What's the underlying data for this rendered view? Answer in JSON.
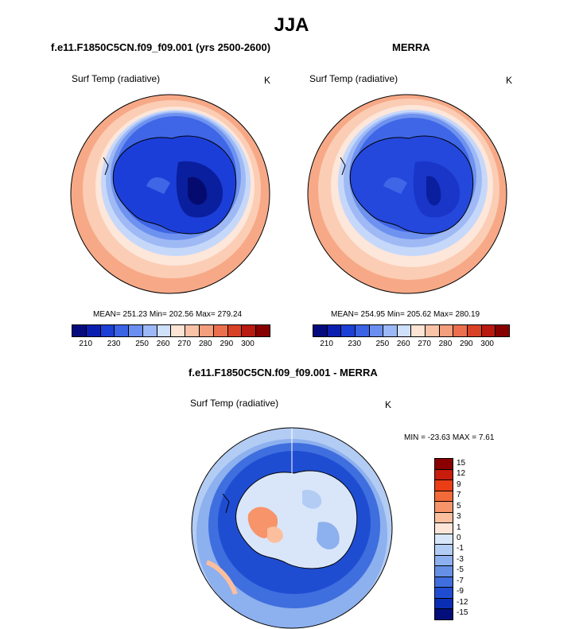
{
  "page": {
    "title": "JJA",
    "units": "K",
    "variable": "Surf Temp (radiative)"
  },
  "panels": {
    "model": {
      "title": "f.e11.F1850C5CN.f09_f09.001 (yrs 2500-2600)",
      "stats": "MEAN= 251.23  Min= 202.56  Max= 279.24"
    },
    "obs": {
      "title": "MERRA",
      "stats": "MEAN= 254.95  Min= 205.62  Max= 280.19"
    },
    "diff": {
      "title": "f.e11.F1850C5CN.f09_f09.001 - MERRA",
      "stats": "MIN = -23.63 MAX =   7.61"
    }
  },
  "colors": {
    "abs_scale": [
      "#050b7d",
      "#0a1fb0",
      "#1c3fd6",
      "#3b63e6",
      "#6a8ff0",
      "#9db8f6",
      "#cfe0fb",
      "#fde4d4",
      "#f9c3a7",
      "#f39e7c",
      "#eb6f4f",
      "#d94126",
      "#b81a10",
      "#870000"
    ],
    "diff_scale": [
      "#8a0000",
      "#c81c0c",
      "#ea3e16",
      "#f36a3a",
      "#f7946a",
      "#fbbf9e",
      "#fde6d8",
      "#d9e6fa",
      "#b3ccf4",
      "#8db0ee",
      "#6690e6",
      "#3f6ede",
      "#1f4dd2",
      "#0a2eb3",
      "#040e7a"
    ],
    "antarctica_model": "#1b3ad2",
    "antarctica_interior": "#0a1f9e",
    "antarctica_deep": "#050b6e"
  },
  "chart_data": [
    {
      "type": "heatmap",
      "projection": "polar-stereographic-south",
      "title": "f.e11.F1850C5CN.f09_f09.001 (yrs 2500-2600)",
      "variable": "Surf Temp (radiative)",
      "units": "K",
      "mean": 251.23,
      "min": 202.56,
      "max": 279.24,
      "colorbar_ticks": [
        "210",
        "230",
        "250",
        "260",
        "270",
        "280",
        "290",
        "300"
      ],
      "colorbar_levels": [
        205,
        210,
        220,
        230,
        240,
        250,
        255,
        260,
        265,
        270,
        275,
        280,
        290,
        295,
        300
      ]
    },
    {
      "type": "heatmap",
      "projection": "polar-stereographic-south",
      "title": "MERRA",
      "variable": "Surf Temp (radiative)",
      "units": "K",
      "mean": 254.95,
      "min": 205.62,
      "max": 280.19,
      "colorbar_ticks": [
        "210",
        "230",
        "250",
        "260",
        "270",
        "280",
        "290",
        "300"
      ],
      "colorbar_levels": [
        205,
        210,
        220,
        230,
        240,
        250,
        255,
        260,
        265,
        270,
        275,
        280,
        290,
        295,
        300
      ]
    },
    {
      "type": "heatmap",
      "projection": "polar-stereographic-south",
      "title": "f.e11.F1850C5CN.f09_f09.001 - MERRA",
      "variable": "Surf Temp (radiative)",
      "units": "K",
      "min": -23.63,
      "max": 7.61,
      "colorbar_ticks": [
        "15",
        "12",
        "9",
        "7",
        "5",
        "3",
        "1",
        "0",
        "-1",
        "-3",
        "-5",
        "-7",
        "-9",
        "-12",
        "-15"
      ]
    }
  ]
}
